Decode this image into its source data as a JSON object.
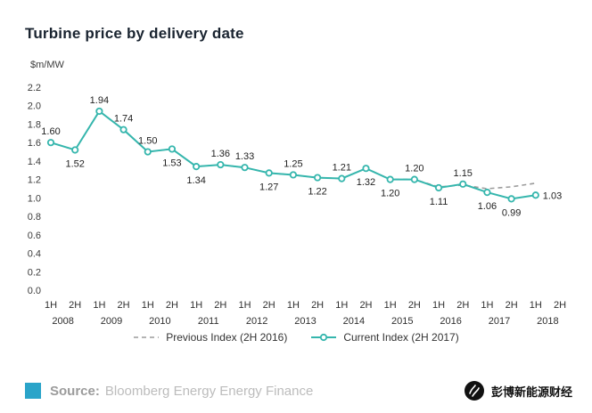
{
  "title": "Turbine price by delivery date",
  "chart_data": {
    "type": "line",
    "ylabel": "$m/MW",
    "ylim": [
      0.0,
      2.2
    ],
    "ytick_step": 0.2,
    "grid": false,
    "legend_position": "bottom",
    "x_halves": [
      "1H",
      "2H",
      "1H",
      "2H",
      "1H",
      "2H",
      "1H",
      "2H",
      "1H",
      "2H",
      "1H",
      "2H",
      "1H",
      "2H",
      "1H",
      "2H",
      "1H",
      "2H",
      "1H",
      "2H",
      "1H",
      "2H"
    ],
    "years": [
      "2008",
      "2009",
      "2010",
      "2011",
      "2012",
      "2013",
      "2014",
      "2015",
      "2016",
      "2017",
      "2018"
    ],
    "series": [
      {
        "name": "Previous Index (2H 2016)",
        "style": "dashed",
        "color": "#9b9b9b",
        "values": [
          1.6,
          1.52,
          1.94,
          1.74,
          1.5,
          1.53,
          1.34,
          1.36,
          1.33,
          1.27,
          1.25,
          1.22,
          1.21,
          1.32,
          1.2,
          1.2,
          1.12,
          1.14,
          1.1,
          1.12,
          1.16,
          null
        ],
        "labels": [],
        "label_pos": []
      },
      {
        "name": "Current Index (2H 2017)",
        "style": "solid-marker",
        "color": "#35b6ad",
        "values": [
          1.6,
          1.52,
          1.94,
          1.74,
          1.5,
          1.53,
          1.34,
          1.36,
          1.33,
          1.27,
          1.25,
          1.22,
          1.21,
          1.32,
          1.2,
          1.2,
          1.11,
          1.15,
          1.06,
          0.99,
          1.03,
          null
        ],
        "labels": [
          "1.60",
          "1.52",
          "1.94",
          "1.74",
          "1.50",
          "1.53",
          "1.34",
          "1.36",
          "1.33",
          "1.27",
          "1.25",
          "1.22",
          "1.21",
          "1.32",
          "1.20",
          "1.20",
          "1.11",
          "1.15",
          "1.06",
          "0.99",
          "1.03",
          ""
        ],
        "label_pos": [
          "above",
          "below",
          "above",
          "above",
          "above",
          "below",
          "below",
          "above",
          "above",
          "below",
          "above",
          "below",
          "above",
          "below",
          "below",
          "above",
          "below",
          "above",
          "below",
          "below",
          "right",
          ""
        ]
      }
    ]
  },
  "legend": [
    {
      "label": "Previous Index (2H 2016)"
    },
    {
      "label": "Current Index (2H 2017)"
    }
  ],
  "footer": {
    "source_label": "Source:",
    "source_text": "Bloomberg Energy Energy Finance",
    "brand_cn": "彭博新能源财经"
  },
  "colors": {
    "accent_teal": "#35b6ad",
    "previous_gray": "#9b9b9b",
    "source_square": "#2aa4c9",
    "title": "#1a2430",
    "logo_black": "#111111"
  }
}
